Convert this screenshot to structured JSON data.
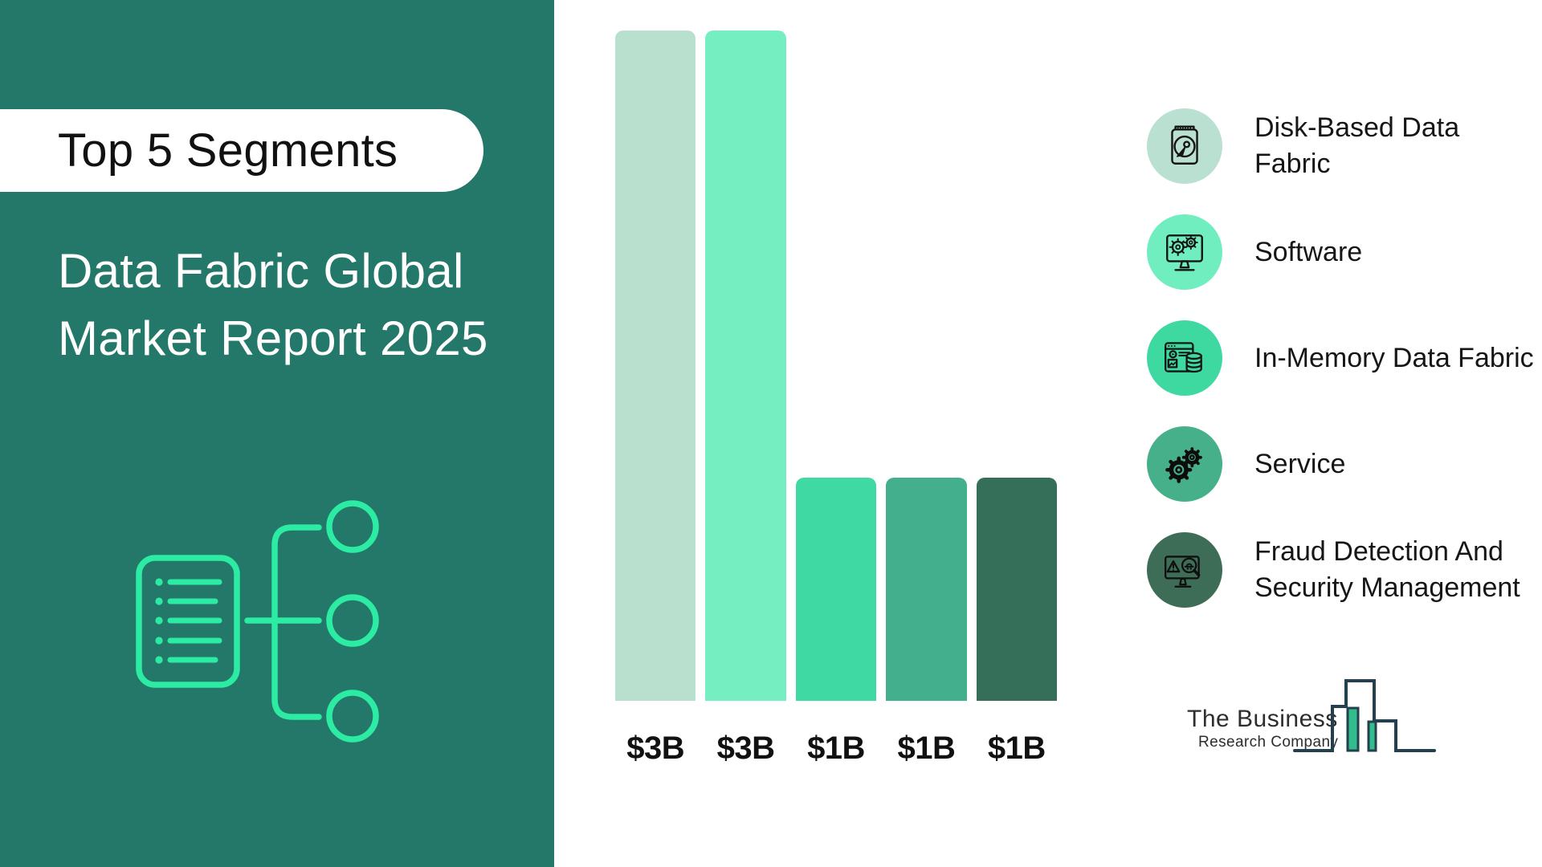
{
  "sidebar": {
    "background": "#23786A",
    "accent": "#2BECA2",
    "badge": {
      "label": "Top 5 Segments",
      "background": "#FFFFFF",
      "text_color": "#111111"
    },
    "title_line1": "Data Fabric Global",
    "title_line2": "Market Report 2025",
    "title_color": "#FFFFFF",
    "icon": "document-flowchart-icon"
  },
  "chart_data": {
    "type": "bar",
    "categories": [
      "Disk-Based Data Fabric",
      "Software",
      "In-Memory Data Fabric",
      "Service",
      "Fraud Detection And Security Management"
    ],
    "values": [
      3,
      3,
      1,
      1,
      1
    ],
    "value_labels": [
      "$3B",
      "$3B",
      "$1B",
      "$1B",
      "$1B"
    ],
    "colors": [
      "#B9E0CF",
      "#75EFC2",
      "#3FD9A3",
      "#44AF8C",
      "#356E59"
    ],
    "title": "",
    "xlabel": "",
    "ylabel": "",
    "ylim": [
      0,
      3
    ],
    "grid": false,
    "legend_position": "right"
  },
  "legend": {
    "items": [
      {
        "label": "Disk-Based Data Fabric",
        "icon": "hard-disk-icon",
        "circle_color": "#B9E0D0"
      },
      {
        "label": "Software",
        "icon": "monitor-gears-icon",
        "circle_color": "#71EEC0"
      },
      {
        "label": "In-Memory Data Fabric",
        "icon": "browser-database-icon",
        "circle_color": "#3ED8A1"
      },
      {
        "label": "Service",
        "icon": "gears-icon",
        "circle_color": "#45B08A"
      },
      {
        "label": "Fraud Detection And Security Management",
        "icon": "spy-monitor-icon",
        "circle_color": "#3D6C57"
      }
    ]
  },
  "logo": {
    "line1": "The Business",
    "line2": "Research Company",
    "outline_color": "#24404E",
    "fill_color": "#33BD8E"
  }
}
